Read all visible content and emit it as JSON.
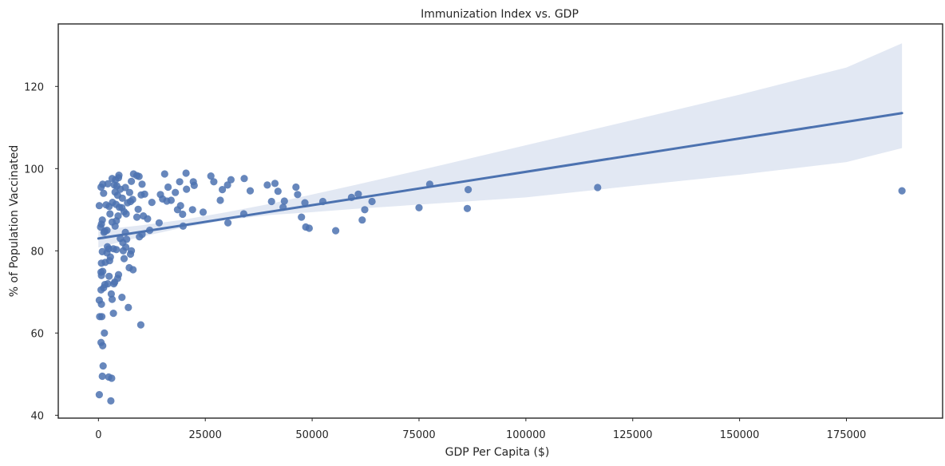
{
  "chart_data": {
    "type": "scatter",
    "title": "Immunization Index vs. GDP",
    "xlabel": "GDP Per Capita ($)",
    "ylabel": "% of Population Vaccinated",
    "xlim": [
      -9400,
      197500
    ],
    "ylim": [
      39.3,
      135.2
    ],
    "xticks": [
      0,
      25000,
      50000,
      75000,
      100000,
      125000,
      150000,
      175000
    ],
    "yticks": [
      40,
      60,
      80,
      100,
      120
    ],
    "grid": false,
    "legend": "none",
    "colors": {
      "points": "#4c72b0",
      "line": "#4c72b0",
      "band": "#dde4f1",
      "frame": "#262626"
    },
    "regression": {
      "x": [
        0,
        188000
      ],
      "y": [
        83.0,
        113.5
      ],
      "ci": [
        [
          0,
          80.8,
          85.1
        ],
        [
          10000,
          83.4,
          86.2
        ],
        [
          20000,
          85.7,
          87.6
        ],
        [
          30000,
          87.5,
          89.4
        ],
        [
          40000,
          88.7,
          91.4
        ],
        [
          50000,
          89.4,
          93.7
        ],
        [
          60000,
          90.2,
          96.0
        ],
        [
          70000,
          90.9,
          98.4
        ],
        [
          80000,
          91.6,
          100.8
        ],
        [
          100000,
          93.0,
          105.7
        ],
        [
          125000,
          95.8,
          111.8
        ],
        [
          150000,
          98.5,
          118.0
        ],
        [
          175000,
          101.6,
          124.6
        ],
        [
          188000,
          105.0,
          130.5
        ]
      ]
    },
    "points": [
      [
        200,
        91.0
      ],
      [
        500,
        85.8
      ],
      [
        700,
        86.5
      ],
      [
        900,
        87.5
      ],
      [
        600,
        95.5
      ],
      [
        1000,
        96.2
      ],
      [
        1200,
        94.0
      ],
      [
        2200,
        96.3
      ],
      [
        1800,
        91.2
      ],
      [
        2500,
        90.8
      ],
      [
        1500,
        84.8
      ],
      [
        2000,
        85.0
      ],
      [
        1300,
        84.5
      ],
      [
        2700,
        89.0
      ],
      [
        3300,
        91.8
      ],
      [
        3700,
        96.0
      ],
      [
        3200,
        97.6
      ],
      [
        4000,
        97.3
      ],
      [
        4800,
        98.4
      ],
      [
        4700,
        97.8
      ],
      [
        4300,
        95.8
      ],
      [
        3900,
        94.3
      ],
      [
        4500,
        93.5
      ],
      [
        5100,
        95.0
      ],
      [
        5600,
        92.8
      ],
      [
        4100,
        91.3
      ],
      [
        4900,
        90.6
      ],
      [
        5500,
        90.5
      ],
      [
        6000,
        89.5
      ],
      [
        6500,
        89.0
      ],
      [
        6800,
        91.7
      ],
      [
        6300,
        95.4
      ],
      [
        7300,
        94.2
      ],
      [
        7700,
        96.9
      ],
      [
        8200,
        98.7
      ],
      [
        9000,
        98.3
      ],
      [
        9500,
        98.1
      ],
      [
        10200,
        96.2
      ],
      [
        10800,
        93.8
      ],
      [
        10000,
        93.6
      ],
      [
        7500,
        92.0
      ],
      [
        8000,
        92.5
      ],
      [
        9300,
        90.1
      ],
      [
        9000,
        88.2
      ],
      [
        10500,
        88.5
      ],
      [
        11500,
        87.8
      ],
      [
        12000,
        85.0
      ],
      [
        14200,
        86.8
      ],
      [
        10200,
        84.0
      ],
      [
        9600,
        83.4
      ],
      [
        12500,
        91.8
      ],
      [
        14500,
        93.7
      ],
      [
        15000,
        92.6
      ],
      [
        16000,
        92.1
      ],
      [
        17000,
        92.3
      ],
      [
        15500,
        98.7
      ],
      [
        16300,
        95.5
      ],
      [
        18000,
        94.2
      ],
      [
        19000,
        96.8
      ],
      [
        20600,
        95.0
      ],
      [
        20500,
        98.9
      ],
      [
        22200,
        96.8
      ],
      [
        22400,
        95.9
      ],
      [
        18500,
        90.0
      ],
      [
        19200,
        91.0
      ],
      [
        19700,
        88.9
      ],
      [
        19800,
        86.0
      ],
      [
        22000,
        90.0
      ],
      [
        24500,
        89.4
      ],
      [
        26300,
        98.2
      ],
      [
        27000,
        96.8
      ],
      [
        28500,
        92.3
      ],
      [
        29000,
        94.9
      ],
      [
        30200,
        96.0
      ],
      [
        31000,
        97.3
      ],
      [
        30300,
        86.8
      ],
      [
        34000,
        89.0
      ],
      [
        34100,
        97.6
      ],
      [
        35500,
        94.6
      ],
      [
        39500,
        96.0
      ],
      [
        41300,
        96.4
      ],
      [
        40500,
        92.0
      ],
      [
        42000,
        94.5
      ],
      [
        43500,
        92.1
      ],
      [
        43200,
        90.6
      ],
      [
        46200,
        95.5
      ],
      [
        46600,
        93.7
      ],
      [
        47500,
        88.2
      ],
      [
        48300,
        91.7
      ],
      [
        48500,
        85.8
      ],
      [
        49300,
        85.5
      ],
      [
        52500,
        92.0
      ],
      [
        55500,
        84.9
      ],
      [
        59200,
        93.0
      ],
      [
        60800,
        93.8
      ],
      [
        61700,
        87.5
      ],
      [
        62300,
        90.0
      ],
      [
        64000,
        92.0
      ],
      [
        75000,
        90.5
      ],
      [
        77500,
        96.2
      ],
      [
        86500,
        94.9
      ],
      [
        86300,
        90.3
      ],
      [
        116800,
        95.4
      ],
      [
        188000,
        94.6
      ],
      [
        1500,
        71.8
      ],
      [
        2200,
        72.0
      ],
      [
        2800,
        78.5
      ],
      [
        1600,
        77.2
      ],
      [
        2600,
        77.6
      ],
      [
        2000,
        79.5
      ],
      [
        2400,
        80.5
      ],
      [
        2100,
        81.0
      ],
      [
        3500,
        80.5
      ],
      [
        3900,
        86.0
      ],
      [
        3200,
        87.0
      ],
      [
        4200,
        87.3
      ],
      [
        4600,
        88.5
      ],
      [
        5100,
        83.0
      ],
      [
        6300,
        84.5
      ],
      [
        5700,
        82.0
      ],
      [
        6600,
        82.8
      ],
      [
        6400,
        80.9
      ],
      [
        5800,
        80.0
      ],
      [
        4200,
        80.3
      ],
      [
        3800,
        72.4
      ],
      [
        3600,
        72.0
      ],
      [
        4500,
        73.3
      ],
      [
        4700,
        74.2
      ],
      [
        6000,
        78.1
      ],
      [
        7700,
        80.0
      ],
      [
        7500,
        79.2
      ],
      [
        7200,
        75.9
      ],
      [
        8100,
        75.4
      ],
      [
        1200,
        71.0
      ],
      [
        1000,
        75.0
      ],
      [
        600,
        74.8
      ],
      [
        700,
        74.0
      ],
      [
        900,
        79.8
      ],
      [
        700,
        77.0
      ],
      [
        2500,
        73.8
      ],
      [
        3000,
        69.5
      ],
      [
        3200,
        68.2
      ],
      [
        5500,
        68.7
      ],
      [
        7000,
        66.2
      ],
      [
        600,
        70.5
      ],
      [
        700,
        67.0
      ],
      [
        200,
        68.0
      ],
      [
        300,
        64.0
      ],
      [
        800,
        64.0
      ],
      [
        1400,
        60.0
      ],
      [
        3500,
        64.8
      ],
      [
        9900,
        62.0
      ],
      [
        600,
        57.7
      ],
      [
        1000,
        56.9
      ],
      [
        1100,
        52.0
      ],
      [
        900,
        49.5
      ],
      [
        2400,
        49.3
      ],
      [
        3100,
        49.0
      ],
      [
        200,
        45.0
      ],
      [
        2900,
        43.5
      ]
    ]
  }
}
